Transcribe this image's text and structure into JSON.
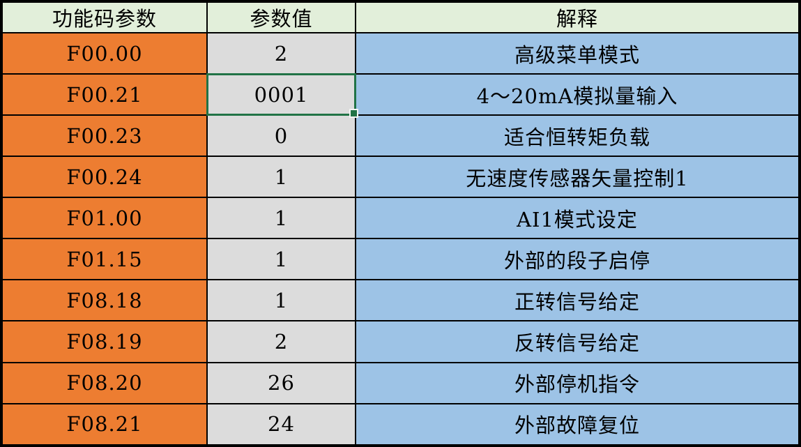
{
  "table": {
    "headers": {
      "function_code": "功能码参数",
      "parameter_value": "参数值",
      "explanation": "解释"
    },
    "rows": [
      {
        "code": "F00.00",
        "value": "2",
        "explanation": "高级菜单模式"
      },
      {
        "code": "F00.21",
        "value": "0001",
        "explanation": "4～20mA模拟量输入",
        "selected": true
      },
      {
        "code": "F00.23",
        "value": "0",
        "explanation": "适合恒转矩负载"
      },
      {
        "code": "F00.24",
        "value": "1",
        "explanation": "无速度传感器矢量控制1"
      },
      {
        "code": "F01.00",
        "value": "1",
        "explanation": "AI1模式设定"
      },
      {
        "code": "F01.15",
        "value": "1",
        "explanation": "外部的段子启停"
      },
      {
        "code": "F08.18",
        "value": "1",
        "explanation": "正转信号给定"
      },
      {
        "code": "F08.19",
        "value": "2",
        "explanation": "反转信号给定"
      },
      {
        "code": "F08.20",
        "value": "26",
        "explanation": "外部停机指令"
      },
      {
        "code": "F08.21",
        "value": "24",
        "explanation": "外部故障复位"
      }
    ],
    "selected_cell": {
      "row_code": "F00.21",
      "column": "参数值",
      "value": "0001"
    }
  },
  "colors": {
    "header_bg": "#E2EFDA",
    "code_column_bg": "#ED7D31",
    "value_column_bg": "#DCDCDC",
    "explanation_column_bg": "#9DC3E6",
    "grid_border": "#000000",
    "selection_border": "#217346"
  }
}
